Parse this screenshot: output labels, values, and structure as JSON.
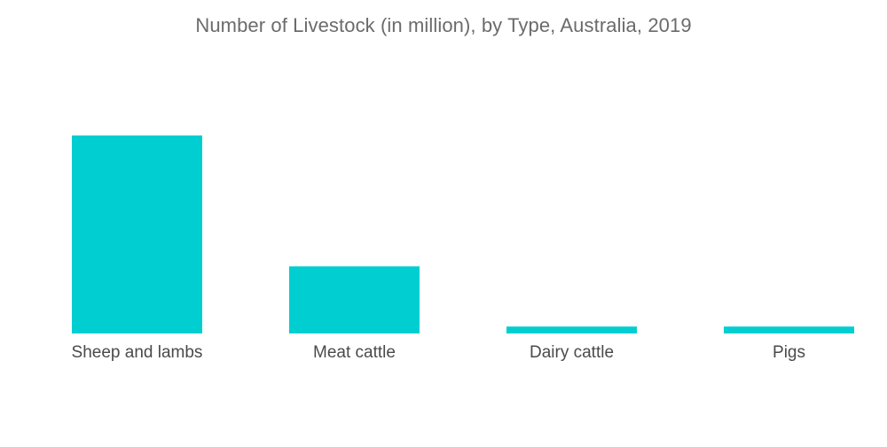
{
  "chart_data": {
    "type": "bar",
    "title": "Number of Livestock (in million), by Type, Australia, 2019",
    "xlabel": "",
    "ylabel": "",
    "categories": [
      "Sheep and lambs",
      "Meat cattle",
      "Dairy cattle",
      "Pigs"
    ],
    "values": [
      65.8,
      22.3,
      2.3,
      2.3
    ],
    "ylim": [
      0,
      66
    ],
    "grid": false,
    "legend": "none",
    "bar_color": "#00CED1"
  }
}
